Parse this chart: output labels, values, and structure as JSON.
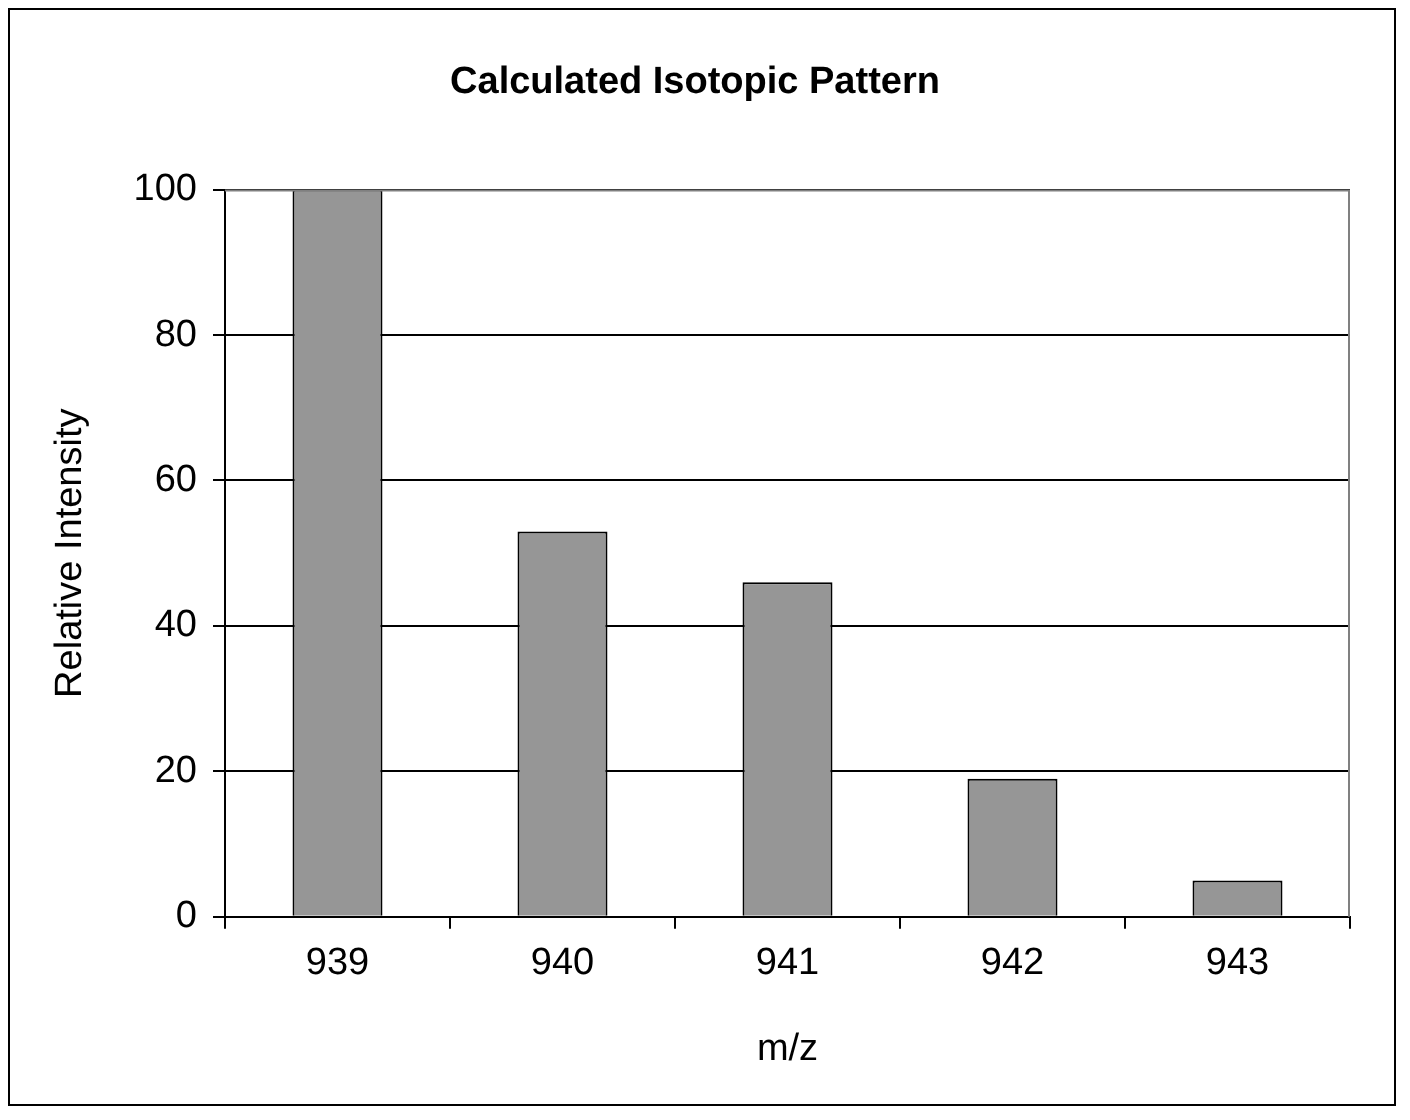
{
  "chart_data": {
    "type": "bar",
    "title": "Calculated Isotopic Pattern",
    "xlabel": "m/z",
    "ylabel": "Relative Intensity",
    "categories": [
      "939",
      "940",
      "941",
      "942",
      "943"
    ],
    "values": [
      100,
      53,
      46,
      19,
      5
    ],
    "color": "#969696",
    "ylim": [
      0,
      100
    ],
    "yticks": [
      0,
      20,
      40,
      60,
      80,
      100
    ],
    "grid": "y"
  }
}
